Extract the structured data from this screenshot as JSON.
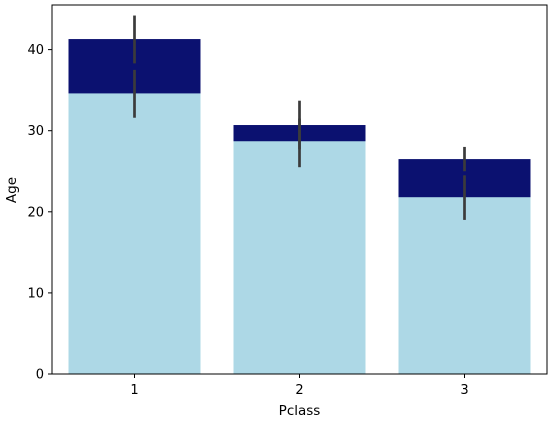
{
  "colors": {
    "background_bar": "#ADD8E6",
    "foreground_bar": "#0B1170",
    "errorbar": "#3b3b3b",
    "axes": "#000000"
  },
  "chart_data": {
    "type": "bar",
    "xlabel": "Pclass",
    "ylabel": "Age",
    "categories": [
      "1",
      "2",
      "3"
    ],
    "ylim": [
      0,
      45.5
    ],
    "yticks": [
      0,
      10,
      20,
      30,
      40
    ],
    "grid": false,
    "series": [
      {
        "values": [
          41.3,
          30.7,
          26.5
        ],
        "errors": [
          [
            38.3,
            44.2
          ],
          [
            27.7,
            33.7
          ],
          [
            25.0,
            28.0
          ]
        ],
        "color": "#0B1170"
      },
      {
        "values": [
          34.6,
          28.7,
          21.8
        ],
        "errors": [
          [
            31.6,
            37.5
          ],
          [
            25.5,
            31.5
          ],
          [
            19.0,
            24.5
          ]
        ],
        "color": "#ADD8E6"
      }
    ]
  }
}
